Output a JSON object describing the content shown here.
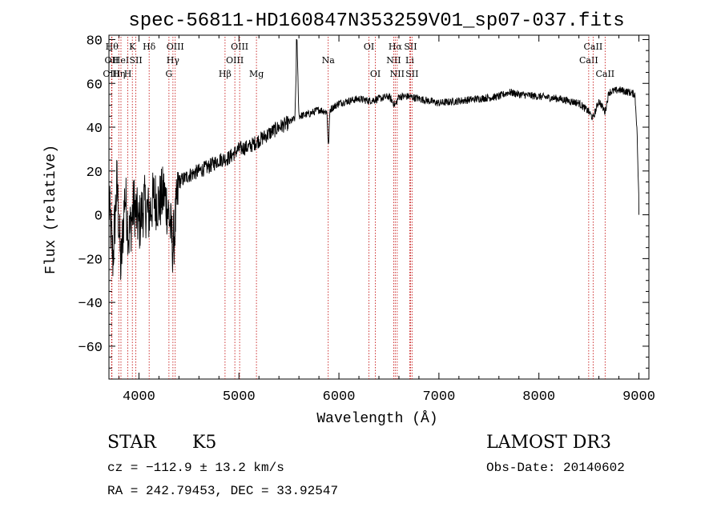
{
  "chart_data": {
    "type": "line",
    "title": "spec-56811-HD160847N353259V01_sp07-037.fits",
    "xlabel": "Wavelength (Å)",
    "ylabel": "Flux (relative)",
    "xlim": [
      3700,
      9100
    ],
    "ylim": [
      -75,
      82
    ],
    "xticks": [
      4000,
      5000,
      6000,
      7000,
      8000,
      9000
    ],
    "xtick_labels": [
      "4000",
      "5000",
      "6000",
      "7000",
      "8000",
      "9000"
    ],
    "yticks": [
      80,
      60,
      40,
      20,
      0,
      -20,
      -40,
      -60
    ],
    "ytick_labels": [
      "80",
      "60",
      "40",
      "20",
      "0",
      "−20",
      "−40",
      "−60"
    ],
    "series": [
      {
        "name": "spectrum",
        "points": [
          [
            3700,
            5
          ],
          [
            3740,
            -20
          ],
          [
            3780,
            15
          ],
          [
            3820,
            -25
          ],
          [
            3860,
            10
          ],
          [
            3900,
            -10
          ],
          [
            3950,
            5
          ],
          [
            4000,
            -5
          ],
          [
            4050,
            5
          ],
          [
            4100,
            0
          ],
          [
            4150,
            8
          ],
          [
            4200,
            5
          ],
          [
            4250,
            10
          ],
          [
            4300,
            0
          ],
          [
            4340,
            -15
          ],
          [
            4400,
            15
          ],
          [
            4500,
            18
          ],
          [
            4600,
            20
          ],
          [
            4700,
            22
          ],
          [
            4800,
            25
          ],
          [
            4900,
            26
          ],
          [
            5000,
            30
          ],
          [
            5100,
            31
          ],
          [
            5200,
            34
          ],
          [
            5300,
            37
          ],
          [
            5400,
            40
          ],
          [
            5500,
            42
          ],
          [
            5560,
            44
          ],
          [
            5580,
            80
          ],
          [
            5600,
            45
          ],
          [
            5700,
            46
          ],
          [
            5800,
            48
          ],
          [
            5880,
            47
          ],
          [
            5895,
            30
          ],
          [
            5910,
            48
          ],
          [
            6000,
            51
          ],
          [
            6100,
            52
          ],
          [
            6200,
            53
          ],
          [
            6300,
            52
          ],
          [
            6400,
            53
          ],
          [
            6500,
            54
          ],
          [
            6563,
            50
          ],
          [
            6600,
            54
          ],
          [
            6700,
            54
          ],
          [
            6800,
            53
          ],
          [
            6900,
            52
          ],
          [
            7000,
            51
          ],
          [
            7200,
            52
          ],
          [
            7400,
            53
          ],
          [
            7600,
            54
          ],
          [
            7700,
            56
          ],
          [
            7800,
            55
          ],
          [
            8000,
            54
          ],
          [
            8200,
            53
          ],
          [
            8400,
            51
          ],
          [
            8500,
            47
          ],
          [
            8540,
            44
          ],
          [
            8600,
            52
          ],
          [
            8662,
            47
          ],
          [
            8700,
            56
          ],
          [
            8800,
            57
          ],
          [
            8900,
            56
          ],
          [
            8960,
            55
          ],
          [
            8980,
            40
          ],
          [
            9000,
            5
          ],
          [
            9000,
            0
          ]
        ]
      }
    ],
    "lines": [
      {
        "x": 3730,
        "label": "Hθ",
        "row": 1
      },
      {
        "x": 3727,
        "label": "OII",
        "row": 2
      },
      {
        "x": 3727,
        "label": "OIII",
        "row": 3
      },
      {
        "x": 3798,
        "label": "Hη",
        "row": 3
      },
      {
        "x": 3820,
        "label": "HeI",
        "row": 2
      },
      {
        "x": 3889,
        "label": "H",
        "row": 3
      },
      {
        "x": 3934,
        "label": "K",
        "row": 1
      },
      {
        "x": 3969,
        "label": "SII",
        "row": 2
      },
      {
        "x": 4102,
        "label": "Hδ",
        "row": 1
      },
      {
        "x": 4300,
        "label": "G",
        "row": 3
      },
      {
        "x": 4340,
        "label": "Hγ",
        "row": 2
      },
      {
        "x": 4363,
        "label": "OIII",
        "row": 1
      },
      {
        "x": 4861,
        "label": "Hβ",
        "row": 3
      },
      {
        "x": 4959,
        "label": "OIII",
        "row": 2
      },
      {
        "x": 5007,
        "label": "OIII",
        "row": 1
      },
      {
        "x": 5175,
        "label": "Mg",
        "row": 3
      },
      {
        "x": 5893,
        "label": "Na",
        "row": 2
      },
      {
        "x": 6300,
        "label": "OI",
        "row": 1
      },
      {
        "x": 6364,
        "label": "OI",
        "row": 3
      },
      {
        "x": 6548,
        "label": "NII",
        "row": 2
      },
      {
        "x": 6563,
        "label": "Hα",
        "row": 1
      },
      {
        "x": 6583,
        "label": "NII",
        "row": 3
      },
      {
        "x": 6708,
        "label": "Li",
        "row": 2
      },
      {
        "x": 6716,
        "label": "SII",
        "row": 1
      },
      {
        "x": 6731,
        "label": "SII",
        "row": 3
      },
      {
        "x": 8498,
        "label": "CaII",
        "row": 2
      },
      {
        "x": 8542,
        "label": "CaII",
        "row": 1
      },
      {
        "x": 8662,
        "label": "CaII",
        "row": 3
      }
    ]
  },
  "info": {
    "class": "STAR",
    "subclass": "K5",
    "survey": "LAMOST DR3",
    "cz": "cz = −112.9 ± 13.2 km/s",
    "obs_date": "Obs-Date: 20140602",
    "coords": "RA = 242.79453, DEC =  33.92547"
  }
}
